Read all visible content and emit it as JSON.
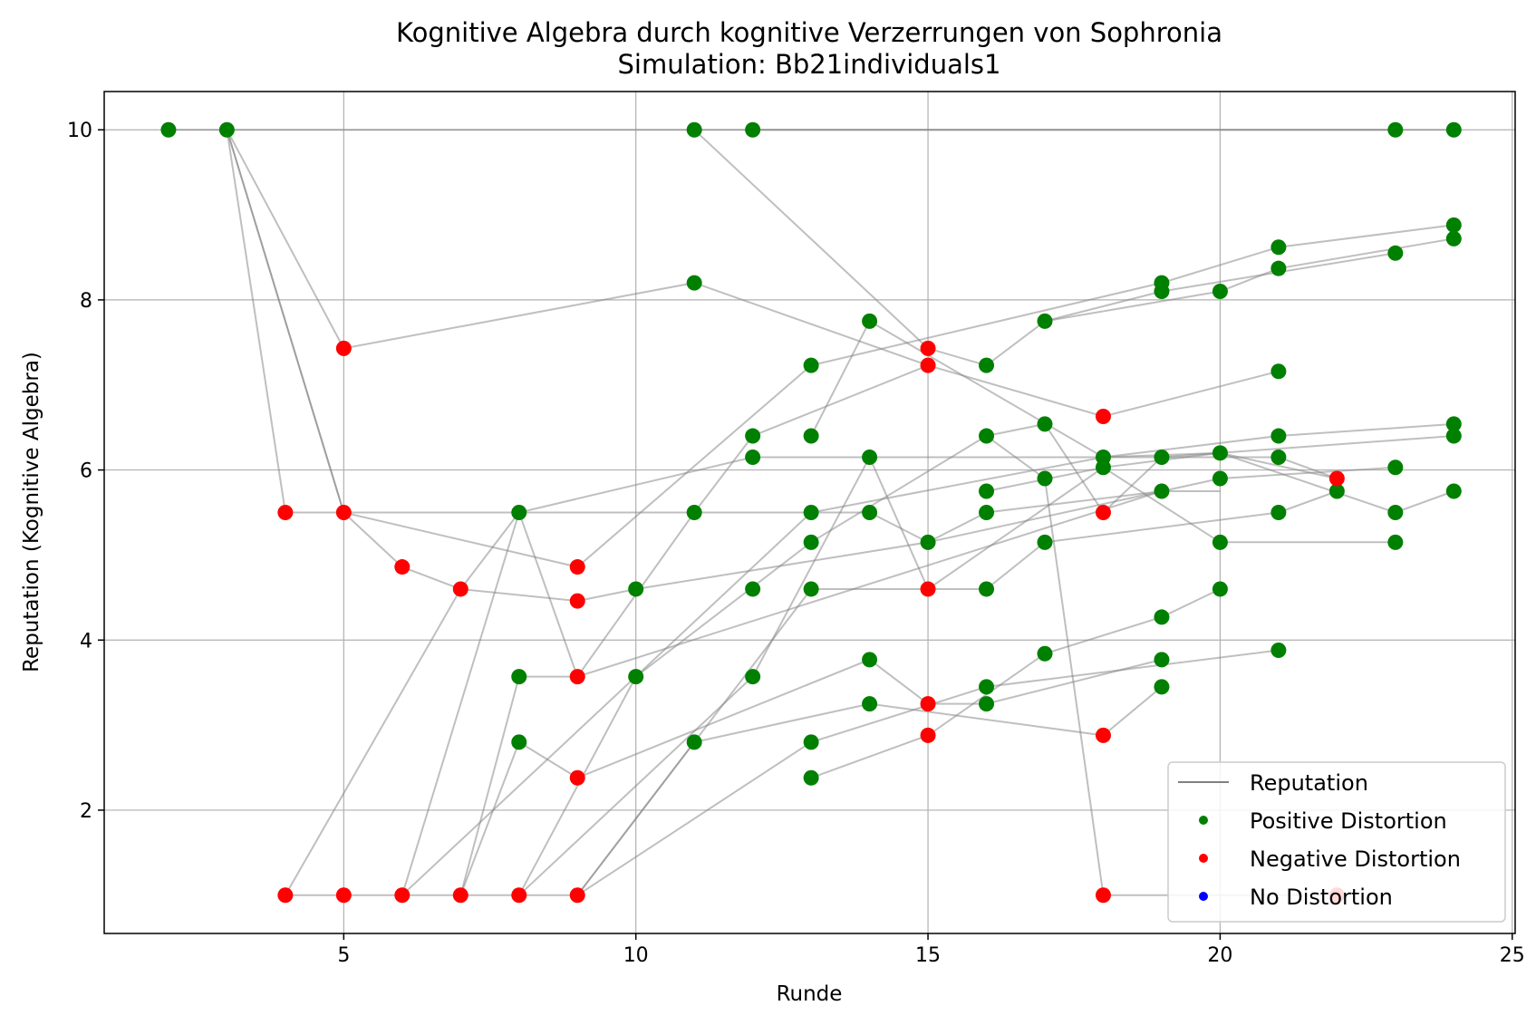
{
  "chart_data": {
    "type": "scatter",
    "title": "Kognitive Algebra durch kognitive Verzerrungen von Sophronia",
    "subtitle": "Simulation: Bb21individuals1",
    "xlabel": "Runde",
    "ylabel": "Reputation (Kognitive Algebra)",
    "xlim": [
      0.9,
      25.05
    ],
    "ylim": [
      0.55,
      10.45
    ],
    "xticks": [
      5,
      10,
      15,
      20,
      25
    ],
    "yticks": [
      2,
      4,
      6,
      8,
      10
    ],
    "grid": true,
    "legend_position": "lower-right",
    "legend": [
      {
        "label": "Reputation",
        "kind": "line",
        "color": "#808080"
      },
      {
        "label": "Positive Distortion",
        "kind": "marker",
        "color": "#008000"
      },
      {
        "label": "Negative Distortion",
        "kind": "marker",
        "color": "#ff0000"
      },
      {
        "label": "No Distortion",
        "kind": "marker",
        "color": "#0000ff"
      }
    ],
    "colors": {
      "positive": "#008000",
      "negative": "#ff0000",
      "none": "#0000ff",
      "line": "#808080"
    },
    "series": [
      {
        "points": [
          [
            3,
            10
          ],
          [
            5,
            5.5
          ],
          [
            6,
            4.86
          ],
          [
            7,
            4.6
          ],
          [
            8,
            5.5
          ],
          [
            12,
            6.15
          ],
          [
            21,
            6.15
          ],
          [
            22,
            5.9
          ]
        ]
      },
      {
        "points": [
          [
            3,
            10
          ],
          [
            5,
            5.5
          ],
          [
            8,
            5.5
          ],
          [
            13,
            5.5
          ],
          [
            14,
            5.5
          ],
          [
            15,
            5.15
          ],
          [
            16,
            5.5
          ],
          [
            19,
            5.75
          ]
        ]
      },
      {
        "points": [
          [
            3,
            10
          ],
          [
            4,
            5.5
          ],
          [
            5,
            5.5
          ],
          [
            9,
            4.86
          ],
          [
            13,
            7.23
          ],
          [
            19,
            8.2
          ],
          [
            21,
            8.62
          ],
          [
            24,
            8.88
          ]
        ]
      },
      {
        "points": [
          [
            3,
            10
          ],
          [
            5,
            7.43
          ],
          [
            11,
            8.2
          ],
          [
            15,
            7.23
          ],
          [
            18,
            6.63
          ],
          [
            21,
            7.16
          ]
        ]
      },
      {
        "points": [
          [
            2,
            10
          ],
          [
            3,
            10
          ],
          [
            24,
            10
          ]
        ]
      },
      {
        "points": [
          [
            11,
            10
          ],
          [
            15,
            7.43
          ],
          [
            16,
            7.23
          ],
          [
            17,
            7.75
          ],
          [
            20,
            8.1
          ],
          [
            21,
            8.37
          ],
          [
            24,
            8.72
          ]
        ]
      },
      {
        "points": [
          [
            4,
            1
          ],
          [
            7,
            4.6
          ],
          [
            9,
            4.46
          ],
          [
            10,
            4.6
          ],
          [
            15,
            5.15
          ],
          [
            20,
            5.9
          ],
          [
            23,
            6.03
          ]
        ]
      },
      {
        "points": [
          [
            4,
            1
          ],
          [
            9,
            1
          ],
          [
            13,
            4.6
          ],
          [
            16,
            4.6
          ],
          [
            17,
            5.15
          ],
          [
            21,
            5.5
          ],
          [
            22,
            5.75
          ]
        ]
      },
      {
        "points": [
          [
            6,
            1
          ],
          [
            8,
            5.5
          ],
          [
            9,
            3.57
          ],
          [
            11,
            5.5
          ],
          [
            12,
            6.4
          ],
          [
            15,
            7.23
          ]
        ]
      },
      {
        "points": [
          [
            6,
            1
          ],
          [
            13,
            5.5
          ],
          [
            18,
            6.15
          ],
          [
            21,
            6.4
          ],
          [
            24,
            6.54
          ]
        ]
      },
      {
        "points": [
          [
            7,
            1
          ],
          [
            8,
            3.57
          ],
          [
            9,
            3.57
          ],
          [
            19,
            5.75
          ],
          [
            20,
            5.75
          ]
        ]
      },
      {
        "points": [
          [
            7,
            1
          ],
          [
            8,
            2.8
          ],
          [
            9,
            2.38
          ],
          [
            14,
            3.77
          ],
          [
            15,
            3.25
          ],
          [
            16,
            3.25
          ],
          [
            19,
            3.77
          ]
        ]
      },
      {
        "points": [
          [
            8,
            1
          ],
          [
            10,
            3.57
          ],
          [
            13,
            5.15
          ],
          [
            16,
            6.4
          ],
          [
            17,
            6.54
          ],
          [
            18,
            5.5
          ],
          [
            19,
            6.15
          ],
          [
            20,
            6.2
          ],
          [
            24,
            6.4
          ]
        ]
      },
      {
        "points": [
          [
            8,
            1
          ],
          [
            12,
            3.57
          ],
          [
            14,
            6.15
          ],
          [
            15,
            4.6
          ]
        ]
      },
      {
        "points": [
          [
            9,
            1
          ],
          [
            11,
            2.8
          ],
          [
            14,
            3.25
          ],
          [
            18,
            2.88
          ],
          [
            19,
            3.45
          ]
        ]
      },
      {
        "points": [
          [
            9,
            1
          ],
          [
            13,
            2.8
          ],
          [
            16,
            3.45
          ],
          [
            21,
            3.88
          ]
        ]
      },
      {
        "points": [
          [
            13,
            2.38
          ],
          [
            15,
            2.88
          ],
          [
            17,
            3.84
          ],
          [
            19,
            4.27
          ],
          [
            20,
            4.6
          ]
        ]
      },
      {
        "points": [
          [
            13,
            6.4
          ],
          [
            14,
            7.75
          ],
          [
            18,
            6.15
          ],
          [
            20,
            6.2
          ],
          [
            22,
            5.9
          ]
        ]
      },
      {
        "points": [
          [
            15,
            4.6
          ],
          [
            18,
            6.03
          ],
          [
            20,
            6.2
          ],
          [
            23,
            5.5
          ],
          [
            24,
            5.75
          ]
        ]
      },
      {
        "points": [
          [
            16,
            5.75
          ],
          [
            18,
            6.03
          ],
          [
            20,
            5.15
          ],
          [
            23,
            5.15
          ]
        ]
      },
      {
        "points": [
          [
            16,
            6.4
          ],
          [
            17,
            5.9
          ],
          [
            18,
            1
          ],
          [
            22,
            1
          ]
        ]
      },
      {
        "points": [
          [
            17,
            7.75
          ],
          [
            19,
            8.1
          ],
          [
            23,
            8.55
          ]
        ]
      },
      {
        "points": [
          [
            12,
            10
          ],
          [
            23,
            10
          ]
        ]
      }
    ],
    "positive_points": [
      [
        2,
        10
      ],
      [
        3,
        10
      ],
      [
        8,
        5.5
      ],
      [
        8,
        3.57
      ],
      [
        8,
        2.8
      ],
      [
        10,
        4.6
      ],
      [
        10,
        3.57
      ],
      [
        11,
        10
      ],
      [
        11,
        8.2
      ],
      [
        11,
        5.5
      ],
      [
        11,
        2.8
      ],
      [
        12,
        10
      ],
      [
        12,
        6.4
      ],
      [
        12,
        6.15
      ],
      [
        12,
        4.6
      ],
      [
        12,
        3.57
      ],
      [
        13,
        7.23
      ],
      [
        13,
        6.4
      ],
      [
        13,
        5.5
      ],
      [
        13,
        5.15
      ],
      [
        13,
        4.6
      ],
      [
        13,
        2.8
      ],
      [
        13,
        2.38
      ],
      [
        14,
        7.75
      ],
      [
        14,
        6.15
      ],
      [
        14,
        5.5
      ],
      [
        14,
        3.77
      ],
      [
        14,
        3.25
      ],
      [
        15,
        5.15
      ],
      [
        16,
        7.23
      ],
      [
        16,
        6.4
      ],
      [
        16,
        5.75
      ],
      [
        16,
        5.5
      ],
      [
        16,
        4.6
      ],
      [
        16,
        3.45
      ],
      [
        16,
        3.25
      ],
      [
        17,
        7.75
      ],
      [
        17,
        6.54
      ],
      [
        17,
        5.9
      ],
      [
        17,
        5.15
      ],
      [
        17,
        3.84
      ],
      [
        18,
        6.15
      ],
      [
        18,
        6.03
      ],
      [
        19,
        8.2
      ],
      [
        19,
        8.1
      ],
      [
        19,
        6.15
      ],
      [
        19,
        5.75
      ],
      [
        19,
        4.27
      ],
      [
        19,
        3.77
      ],
      [
        19,
        3.45
      ],
      [
        20,
        8.1
      ],
      [
        20,
        6.2
      ],
      [
        20,
        5.9
      ],
      [
        20,
        5.15
      ],
      [
        20,
        4.6
      ],
      [
        21,
        8.62
      ],
      [
        21,
        8.37
      ],
      [
        21,
        7.16
      ],
      [
        21,
        6.4
      ],
      [
        21,
        6.15
      ],
      [
        21,
        5.5
      ],
      [
        21,
        3.88
      ],
      [
        22,
        5.75
      ],
      [
        23,
        10
      ],
      [
        23,
        8.55
      ],
      [
        23,
        6.03
      ],
      [
        23,
        5.5
      ],
      [
        23,
        5.15
      ],
      [
        24,
        10
      ],
      [
        24,
        8.88
      ],
      [
        24,
        8.72
      ],
      [
        24,
        6.54
      ],
      [
        24,
        6.4
      ],
      [
        24,
        5.75
      ]
    ],
    "negative_points": [
      [
        4,
        5.5
      ],
      [
        4,
        1
      ],
      [
        5,
        7.43
      ],
      [
        5,
        5.5
      ],
      [
        5,
        1
      ],
      [
        6,
        4.86
      ],
      [
        6,
        1
      ],
      [
        7,
        4.6
      ],
      [
        7,
        1
      ],
      [
        8,
        1
      ],
      [
        9,
        4.86
      ],
      [
        9,
        4.46
      ],
      [
        9,
        3.57
      ],
      [
        9,
        2.38
      ],
      [
        9,
        1
      ],
      [
        15,
        7.43
      ],
      [
        15,
        7.23
      ],
      [
        15,
        4.6
      ],
      [
        15,
        3.25
      ],
      [
        15,
        2.88
      ],
      [
        18,
        6.63
      ],
      [
        18,
        5.5
      ],
      [
        18,
        2.88
      ],
      [
        18,
        1
      ],
      [
        22,
        5.9
      ],
      [
        22,
        1
      ]
    ]
  }
}
